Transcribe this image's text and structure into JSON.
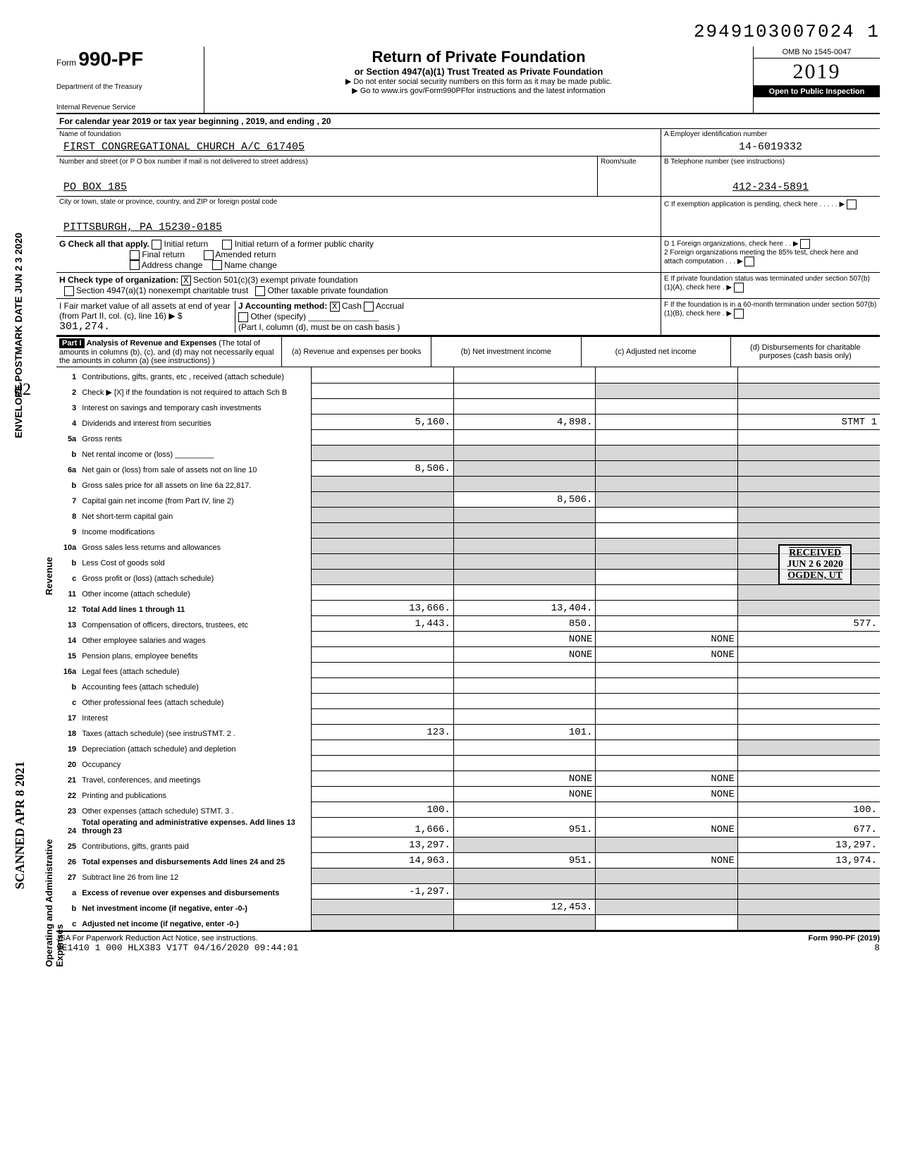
{
  "doc_id": "2949103007024 1",
  "form": {
    "prefix": "Form",
    "number": "990-PF",
    "dept1": "Department of the Treasury",
    "dept2": "Internal Revenue Service"
  },
  "title": {
    "main": "Return of Private Foundation",
    "sub": "or Section 4947(a)(1) Trust Treated as Private Foundation",
    "line1": "▶ Do not enter social security numbers on this form as it may be made public.",
    "line2": "▶ Go to www.irs gov/Form990PFfor instructions and the latest information"
  },
  "yearbox": {
    "omb": "OMB No 1545-0047",
    "year": "2019",
    "open": "Open to Public Inspection"
  },
  "calyear": "For calendar year 2019 or tax year beginning                                                    , 2019, and ending                                        , 20",
  "name_label": "Name of foundation",
  "name_val": "FIRST CONGREGATIONAL CHURCH A/C 617405",
  "ein_label": "A  Employer identification number",
  "ein_val": "14-6019332",
  "addr_label": "Number and street (or P O  box number if mail is not delivered to street address)",
  "addr_val": "PO BOX 185",
  "room_label": "Room/suite",
  "tel_label": "B  Telephone number (see instructions)",
  "tel_val": "412-234-5891",
  "city_label": "City or town, state or province, country, and ZIP or foreign postal code",
  "city_val": "PITTSBURGH, PA 15230-0185",
  "c_label": "C  If exemption application is pending, check here",
  "g_label": "G  Check all that apply.",
  "g_opts": [
    "Initial return",
    "Final return",
    "Address change",
    "Initial return of a former public charity",
    "Amended return",
    "Name change"
  ],
  "d_label": "D  1 Foreign organizations, check here",
  "d2_label": "2 Foreign organizations meeting the 85% test, check here and attach computation",
  "h_label": "H  Check type of organization:",
  "h_opt1": "Section 501(c)(3) exempt private foundation",
  "h_opt2": "Section 4947(a)(1) nonexempt charitable trust",
  "h_opt3": "Other taxable private foundation",
  "e_label": "E  If private foundation status was terminated under section 507(b)(1)(A), check here",
  "i_label": "I  Fair market value of all assets at end of year (from Part II, col. (c), line 16) ▶ $",
  "i_val": "301,274.",
  "j_label": "J Accounting method:",
  "j_cash": "Cash",
  "j_accrual": "Accrual",
  "j_other": "Other (specify)",
  "j_note": "(Part I, column (d), must be on cash basis )",
  "f_label": "F  If the foundation is in a 60-month termination under section 507(b)(1)(B), check here",
  "part1": {
    "label": "Part I",
    "title": "Analysis of Revenue and Expenses",
    "desc": "(The total of amounts in columns (b), (c), and (d) may not necessarily equal the amounts in column (a) (see instructions) )",
    "col_a": "(a) Revenue and expenses per books",
    "col_b": "(b) Net investment income",
    "col_c": "(c) Adjusted net income",
    "col_d": "(d) Disbursements for charitable purposes (cash basis only)"
  },
  "rows": [
    {
      "n": "1",
      "d": "Contributions, gifts, grants, etc , received (attach schedule)",
      "a": "",
      "b": "",
      "c": "",
      "dv": ""
    },
    {
      "n": "2",
      "d": "Check ▶ [X] if the foundation is not required to attach Sch B",
      "a": "",
      "b": "",
      "c": "shade",
      "dv": "shade"
    },
    {
      "n": "3",
      "d": "Interest on savings and temporary cash investments",
      "a": "",
      "b": "",
      "c": "",
      "dv": ""
    },
    {
      "n": "4",
      "d": "Dividends and interest from securities",
      "a": "5,160.",
      "b": "4,898.",
      "c": "",
      "dv": "STMT 1"
    },
    {
      "n": "5a",
      "d": "Gross rents",
      "a": "",
      "b": "",
      "c": "",
      "dv": ""
    },
    {
      "n": "b",
      "d": "Net rental income or (loss) _________",
      "a": "shade",
      "b": "shade",
      "c": "shade",
      "dv": "shade"
    },
    {
      "n": "6a",
      "d": "Net gain or (loss) from sale of assets not on line 10",
      "a": "8,506.",
      "b": "shade",
      "c": "shade",
      "dv": "shade"
    },
    {
      "n": "b",
      "d": "Gross sales price for all assets on line 6a            22,817.",
      "a": "shade",
      "b": "shade",
      "c": "shade",
      "dv": "shade"
    },
    {
      "n": "7",
      "d": "Capital gain net income (from Part IV, line 2)",
      "a": "shade",
      "b": "8,506.",
      "c": "shade",
      "dv": "shade"
    },
    {
      "n": "8",
      "d": "Net short-term capital gain",
      "a": "shade",
      "b": "shade",
      "c": "",
      "dv": "shade"
    },
    {
      "n": "9",
      "d": "Income modifications",
      "a": "shade",
      "b": "shade",
      "c": "",
      "dv": "shade"
    },
    {
      "n": "10a",
      "d": "Gross sales less returns and allowances",
      "a": "shade",
      "b": "shade",
      "c": "shade",
      "dv": "shade"
    },
    {
      "n": "b",
      "d": "Less Cost of goods sold",
      "a": "shade",
      "b": "shade",
      "c": "shade",
      "dv": "shade"
    },
    {
      "n": "c",
      "d": "Gross profit or (loss) (attach schedule)",
      "a": "shade",
      "b": "shade",
      "c": "",
      "dv": "shade"
    },
    {
      "n": "11",
      "d": "Other income (attach schedule)",
      "a": "",
      "b": "",
      "c": "",
      "dv": "shade"
    },
    {
      "n": "12",
      "d": "Total Add lines 1 through 11",
      "a": "13,666.",
      "b": "13,404.",
      "c": "",
      "dv": "shade",
      "bold": true
    },
    {
      "n": "13",
      "d": "Compensation of officers, directors, trustees, etc",
      "a": "1,443.",
      "b": "850.",
      "c": "",
      "dv": "577."
    },
    {
      "n": "14",
      "d": "Other employee salaries and wages",
      "a": "",
      "b": "NONE",
      "c": "NONE",
      "dv": ""
    },
    {
      "n": "15",
      "d": "Pension plans, employee benefits",
      "a": "",
      "b": "NONE",
      "c": "NONE",
      "dv": ""
    },
    {
      "n": "16a",
      "d": "Legal fees (attach schedule)",
      "a": "",
      "b": "",
      "c": "",
      "dv": ""
    },
    {
      "n": "b",
      "d": "Accounting fees (attach schedule)",
      "a": "",
      "b": "",
      "c": "",
      "dv": ""
    },
    {
      "n": "c",
      "d": "Other professional fees (attach schedule)",
      "a": "",
      "b": "",
      "c": "",
      "dv": ""
    },
    {
      "n": "17",
      "d": "Interest",
      "a": "",
      "b": "",
      "c": "",
      "dv": ""
    },
    {
      "n": "18",
      "d": "Taxes (attach schedule) (see instruSTMT. 2 .",
      "a": "123.",
      "b": "101.",
      "c": "",
      "dv": ""
    },
    {
      "n": "19",
      "d": "Depreciation (attach schedule) and depletion",
      "a": "",
      "b": "",
      "c": "",
      "dv": "shade"
    },
    {
      "n": "20",
      "d": "Occupancy",
      "a": "",
      "b": "",
      "c": "",
      "dv": ""
    },
    {
      "n": "21",
      "d": "Travel, conferences, and meetings",
      "a": "",
      "b": "NONE",
      "c": "NONE",
      "dv": ""
    },
    {
      "n": "22",
      "d": "Printing and publications",
      "a": "",
      "b": "NONE",
      "c": "NONE",
      "dv": ""
    },
    {
      "n": "23",
      "d": "Other expenses (attach schedule) STMT. 3 .",
      "a": "100.",
      "b": "",
      "c": "",
      "dv": "100."
    },
    {
      "n": "24",
      "d": "Total operating and administrative expenses. Add lines 13 through 23",
      "a": "1,666.",
      "b": "951.",
      "c": "NONE",
      "dv": "677.",
      "bold": true
    },
    {
      "n": "25",
      "d": "Contributions, gifts, grants paid",
      "a": "13,297.",
      "b": "shade",
      "c": "shade",
      "dv": "13,297."
    },
    {
      "n": "26",
      "d": "Total expenses and disbursements Add lines 24 and 25",
      "a": "14,963.",
      "b": "951.",
      "c": "NONE",
      "dv": "13,974.",
      "bold": true
    },
    {
      "n": "27",
      "d": "Subtract line 26 from line 12",
      "a": "shade",
      "b": "shade",
      "c": "shade",
      "dv": "shade"
    },
    {
      "n": "a",
      "d": "Excess of revenue over expenses and disbursements",
      "a": "-1,297.",
      "b": "shade",
      "c": "shade",
      "dv": "shade",
      "bold": true
    },
    {
      "n": "b",
      "d": "Net investment income (if negative, enter -0-)",
      "a": "shade",
      "b": "12,453.",
      "c": "shade",
      "dv": "shade",
      "bold": true
    },
    {
      "n": "c",
      "d": "Adjusted net income (if negative, enter -0-)",
      "a": "shade",
      "b": "shade",
      "c": "",
      "dv": "shade",
      "bold": true
    }
  ],
  "footer": {
    "left": "JSA For Paperwork Reduction Act Notice, see instructions.",
    "mid": "9E1410 1 000 HLX383 V17T 04/16/2020 09:44:01",
    "right": "Form 990-PF (2019)",
    "page": "8"
  },
  "stamp": {
    "l1": "RECEIVED",
    "l2": "JUN 2 6 2020",
    "l3": "OGDEN, UT"
  },
  "margin": {
    "m1": "ENVELOPE\nPOSTMARK DATE  JUN 2 3 2020",
    "m2": "SCANNED APR 8 2021"
  },
  "side": {
    "rev": "Revenue",
    "exp": "Operating and Administrative Expenses"
  }
}
